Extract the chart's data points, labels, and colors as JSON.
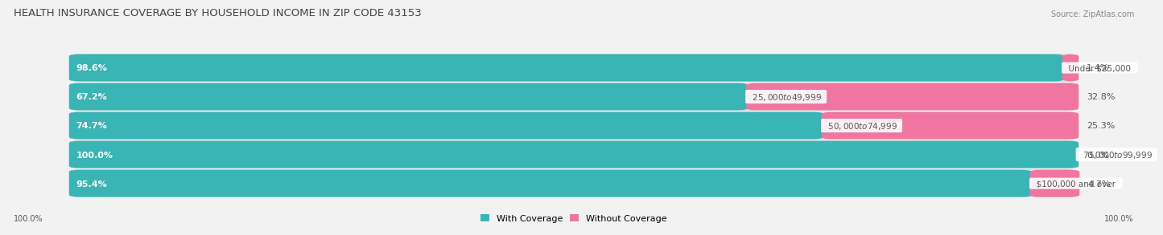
{
  "title": "HEALTH INSURANCE COVERAGE BY HOUSEHOLD INCOME IN ZIP CODE 43153",
  "source": "Source: ZipAtlas.com",
  "categories": [
    "Under $25,000",
    "$25,000 to $49,999",
    "$50,000 to $74,999",
    "$75,000 to $99,999",
    "$100,000 and over"
  ],
  "with_coverage": [
    98.6,
    67.2,
    74.7,
    100.0,
    95.4
  ],
  "without_coverage": [
    1.4,
    32.8,
    25.3,
    0.0,
    4.7
  ],
  "color_with": "#3ab5b5",
  "color_without": "#f075a0",
  "color_with_light": "#7dd4d4",
  "background_color": "#f2f2f2",
  "bar_bg_color": "#e8e8e8",
  "title_fontsize": 9.5,
  "label_fontsize": 8,
  "cat_fontsize": 7.5,
  "source_fontsize": 7,
  "legend_fontsize": 8,
  "bottom_labels": [
    "100.0%",
    "100.0%"
  ]
}
